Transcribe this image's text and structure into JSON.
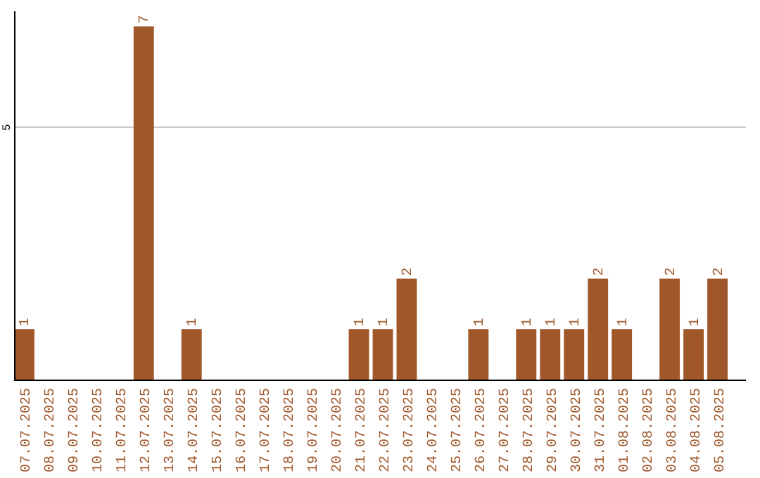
{
  "chart_data": {
    "type": "bar",
    "categories": [
      "07.07.2025",
      "08.07.2025",
      "09.07.2025",
      "10.07.2025",
      "11.07.2025",
      "12.07.2025",
      "13.07.2025",
      "14.07.2025",
      "15.07.2025",
      "16.07.2025",
      "17.07.2025",
      "18.07.2025",
      "19.07.2025",
      "20.07.2025",
      "21.07.2025",
      "22.07.2025",
      "23.07.2025",
      "24.07.2025",
      "25.07.2025",
      "26.07.2025",
      "27.07.2025",
      "28.07.2025",
      "29.07.2025",
      "30.07.2025",
      "31.07.2025",
      "01.08.2025",
      "02.08.2025",
      "03.08.2025",
      "04.08.2025",
      "05.08.2025"
    ],
    "values": [
      1,
      null,
      null,
      null,
      null,
      7,
      null,
      1,
      null,
      null,
      null,
      null,
      null,
      null,
      1,
      1,
      2,
      null,
      null,
      1,
      null,
      1,
      1,
      1,
      2,
      1,
      null,
      2,
      1,
      2
    ],
    "color": "#a0572a",
    "ylim": [
      0,
      7.3
    ],
    "yticks": [
      5
    ],
    "grid": "y",
    "data_labels": true
  }
}
